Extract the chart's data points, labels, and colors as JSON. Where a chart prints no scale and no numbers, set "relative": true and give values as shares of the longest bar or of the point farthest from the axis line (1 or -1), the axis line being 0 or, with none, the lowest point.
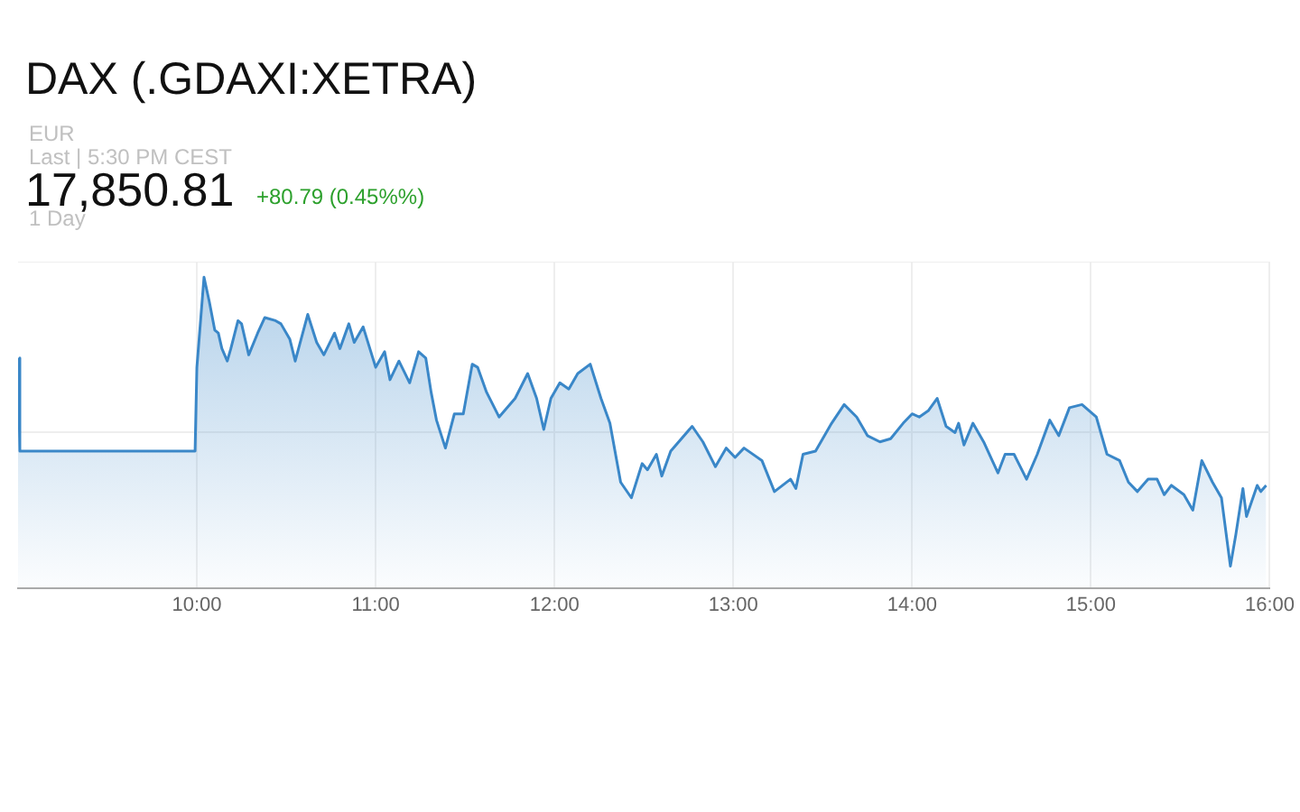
{
  "chart_data": {
    "type": "area",
    "title": "DAX (.GDAXI:XETRA)",
    "annotations": [
      "EUR",
      "Last | 5:30 PM CEST",
      "17,850.81",
      "+80.79 (0.45%%)",
      "1 Day"
    ],
    "relative": true,
    "grid": true,
    "xlim": [
      9,
      16
    ],
    "xticks": [
      {
        "value": 10,
        "label": "10:00"
      },
      {
        "value": 11,
        "label": "11:00"
      },
      {
        "value": 12,
        "label": "12:00"
      },
      {
        "value": 13,
        "label": "13:00"
      },
      {
        "value": 14,
        "label": "14:00"
      },
      {
        "value": 15,
        "label": "15:00"
      },
      {
        "value": 16,
        "label": "16:00"
      }
    ],
    "series": [
      {
        "color": "#3a87c8",
        "x": [
          9.0,
          9.01,
          9.99,
          10.0,
          10.04,
          10.07,
          10.1,
          10.12,
          10.14,
          10.17,
          10.19,
          10.23,
          10.25,
          10.29,
          10.34,
          10.38,
          10.44,
          10.47,
          10.52,
          10.55,
          10.62,
          10.67,
          10.71,
          10.77,
          10.8,
          10.85,
          10.88,
          10.93,
          11.0,
          11.05,
          11.08,
          11.13,
          11.19,
          11.24,
          11.28,
          11.31,
          11.34,
          11.39,
          11.44,
          11.49,
          11.54,
          11.57,
          11.62,
          11.69,
          11.78,
          11.85,
          11.9,
          11.94,
          11.98,
          12.03,
          12.08,
          12.13,
          12.2,
          12.26,
          12.31,
          12.37,
          12.43,
          12.49,
          12.52,
          12.57,
          12.6,
          12.65,
          12.77,
          12.83,
          12.9,
          12.96,
          13.01,
          13.06,
          13.16,
          13.23,
          13.32,
          13.35,
          13.39,
          13.46,
          13.55,
          13.62,
          13.69,
          13.75,
          13.82,
          13.88,
          13.95,
          14.0,
          14.04,
          14.09,
          14.14,
          14.19,
          14.24,
          14.26,
          14.29,
          14.34,
          14.4,
          14.48,
          14.52,
          14.57,
          14.64,
          14.7,
          14.77,
          14.82,
          14.88,
          14.95,
          15.03,
          15.09,
          15.16,
          15.21,
          15.26,
          15.32,
          15.37,
          15.41,
          15.45,
          15.52,
          15.57,
          15.62,
          15.68,
          15.73,
          15.78,
          15.81,
          15.85,
          15.87,
          15.93,
          15.95,
          15.98
        ],
        "values": [
          0.74,
          0.44,
          0.44,
          0.71,
          1.0,
          0.92,
          0.83,
          0.82,
          0.77,
          0.73,
          0.77,
          0.86,
          0.85,
          0.75,
          0.82,
          0.87,
          0.86,
          0.85,
          0.8,
          0.73,
          0.88,
          0.79,
          0.75,
          0.82,
          0.77,
          0.85,
          0.79,
          0.84,
          0.71,
          0.76,
          0.67,
          0.73,
          0.66,
          0.76,
          0.74,
          0.63,
          0.54,
          0.45,
          0.56,
          0.56,
          0.72,
          0.71,
          0.63,
          0.55,
          0.61,
          0.69,
          0.61,
          0.51,
          0.61,
          0.66,
          0.64,
          0.69,
          0.72,
          0.61,
          0.53,
          0.34,
          0.29,
          0.4,
          0.38,
          0.43,
          0.36,
          0.44,
          0.52,
          0.47,
          0.39,
          0.45,
          0.42,
          0.45,
          0.41,
          0.31,
          0.35,
          0.32,
          0.43,
          0.44,
          0.53,
          0.59,
          0.55,
          0.49,
          0.47,
          0.48,
          0.53,
          0.56,
          0.55,
          0.57,
          0.61,
          0.52,
          0.5,
          0.53,
          0.46,
          0.53,
          0.47,
          0.37,
          0.43,
          0.43,
          0.35,
          0.43,
          0.54,
          0.49,
          0.58,
          0.59,
          0.55,
          0.43,
          0.41,
          0.34,
          0.31,
          0.35,
          0.35,
          0.3,
          0.33,
          0.3,
          0.25,
          0.41,
          0.34,
          0.29,
          0.07,
          0.17,
          0.32,
          0.23,
          0.33,
          0.31,
          0.33
        ]
      }
    ]
  }
}
